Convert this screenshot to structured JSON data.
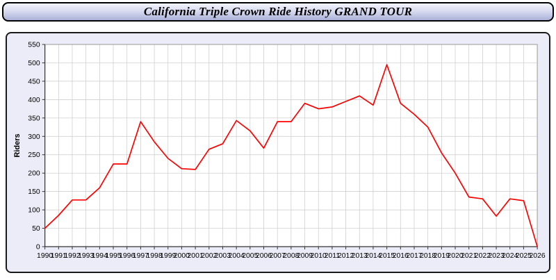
{
  "header": {
    "title": "California Triple Crown Ride History GRAND TOUR"
  },
  "chart_data": {
    "type": "line",
    "title": "California Triple Crown Ride History GRAND TOUR",
    "xlabel": "",
    "ylabel": "Riders",
    "ylim": [
      0,
      550
    ],
    "ytick_step": 50,
    "grid": true,
    "legend_position": "none",
    "x": [
      1990,
      1991,
      1992,
      1993,
      1994,
      1995,
      1996,
      1997,
      1998,
      1999,
      2000,
      2001,
      2002,
      2003,
      2004,
      2005,
      2006,
      2007,
      2008,
      2009,
      2010,
      2011,
      2012,
      2013,
      2014,
      2015,
      2016,
      2017,
      2018,
      2019,
      2020,
      2021,
      2022,
      2023,
      2024,
      2025,
      2026
    ],
    "series": [
      {
        "name": "Riders",
        "color": "#ff0000",
        "values": [
          50,
          85,
          127,
          127,
          160,
          225,
          225,
          340,
          285,
          240,
          212,
          210,
          265,
          280,
          343,
          315,
          268,
          340,
          340,
          390,
          375,
          380,
          395,
          410,
          385,
          495,
          390,
          360,
          325,
          255,
          200,
          135,
          130,
          83,
          130,
          125,
          0
        ]
      }
    ],
    "colors": {
      "line": "#ff0000",
      "grid": "#c9c9c9",
      "plot_background": "#ffffff",
      "panel_background": "#ececf8",
      "axis": "#333333",
      "tick_text": "#000000"
    }
  }
}
